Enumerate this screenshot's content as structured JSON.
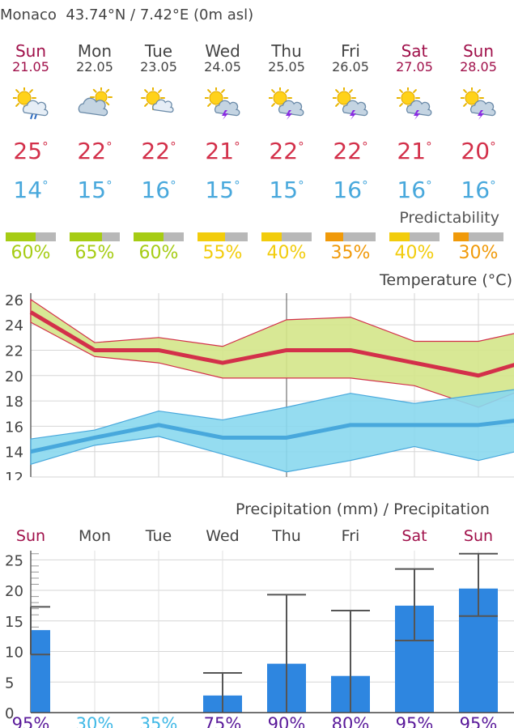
{
  "location": {
    "name": "Monaco",
    "coords": "43.74°N / 7.42°E (0m asl)"
  },
  "days": [
    {
      "name": "Sun",
      "date": "21.05",
      "weekend": true,
      "icon": "sun-cloud-rain-icon",
      "tmax": "25",
      "tmin": "14",
      "pred": "60%",
      "pred_frac": 0.6,
      "pred_color": "#a6cc14"
    },
    {
      "name": "Mon",
      "date": "22.05",
      "weekend": false,
      "icon": "cloud-sun-icon",
      "tmax": "22",
      "tmin": "15",
      "pred": "65%",
      "pred_frac": 0.65,
      "pred_color": "#a6cc14"
    },
    {
      "name": "Tue",
      "date": "23.05",
      "weekend": false,
      "icon": "sun-cloud-icon",
      "tmax": "22",
      "tmin": "16",
      "pred": "60%",
      "pred_frac": 0.6,
      "pred_color": "#a6cc14"
    },
    {
      "name": "Wed",
      "date": "24.05",
      "weekend": false,
      "icon": "sun-thunderstorm-icon",
      "tmax": "21",
      "tmin": "15",
      "pred": "55%",
      "pred_frac": 0.55,
      "pred_color": "#f2cc0c"
    },
    {
      "name": "Thu",
      "date": "25.05",
      "weekend": false,
      "icon": "sun-thunderstorm-icon",
      "tmax": "22",
      "tmin": "15",
      "pred": "40%",
      "pred_frac": 0.4,
      "pred_color": "#f2cc0c"
    },
    {
      "name": "Fri",
      "date": "26.05",
      "weekend": false,
      "icon": "sun-thunderstorm-icon",
      "tmax": "22",
      "tmin": "16",
      "pred": "35%",
      "pred_frac": 0.35,
      "pred_color": "#f09a0a"
    },
    {
      "name": "Sat",
      "date": "27.05",
      "weekend": true,
      "icon": "sun-thunderstorm-icon",
      "tmax": "21",
      "tmin": "16",
      "pred": "40%",
      "pred_frac": 0.4,
      "pred_color": "#f2cc0c"
    },
    {
      "name": "Sun",
      "date": "28.05",
      "weekend": true,
      "icon": "sun-thunderstorm-icon",
      "tmax": "20",
      "tmin": "16",
      "pred": "30%",
      "pred_frac": 0.3,
      "pred_color": "#f09a0a"
    }
  ],
  "degree_symbol": "°",
  "predictability_title": "Predictability",
  "temperature_title": "Temperature (°C)",
  "precipitation_title": "Precipitation (mm) / Precipitation",
  "colors": {
    "weekend": "#a0104a",
    "weekday": "#444444",
    "tmax": "#d3304a",
    "tmin": "#48a8dc",
    "precip_bar": "#2e86e0",
    "prob_high": "#5a1a9a",
    "prob_low": "#3fb8e6"
  },
  "chart_data": [
    {
      "type": "line",
      "title": "Temperature (°C)",
      "ylim": [
        12,
        26.5
      ],
      "yticks": [
        12,
        14,
        16,
        18,
        20,
        22,
        24,
        26
      ],
      "x": [
        0,
        1,
        2,
        3,
        4,
        5,
        6,
        7,
        8
      ],
      "series": [
        {
          "role": "max",
          "values": [
            25,
            22,
            22,
            21,
            22,
            22,
            21,
            20,
            21.5
          ]
        },
        {
          "role": "max-upper",
          "values": [
            26,
            22.6,
            23,
            22.3,
            24.4,
            24.6,
            22.7,
            22.7,
            23.8
          ]
        },
        {
          "role": "max-lower",
          "values": [
            24.2,
            21.5,
            21,
            19.8,
            19.8,
            19.8,
            19.2,
            17.5,
            19.5
          ]
        },
        {
          "role": "min",
          "values": [
            14,
            15.1,
            16.1,
            15.1,
            15.1,
            16.1,
            16.1,
            16.1,
            16.7
          ]
        },
        {
          "role": "min-upper",
          "values": [
            15,
            15.7,
            17.2,
            16.5,
            17.5,
            18.6,
            17.8,
            18.5,
            19.2
          ]
        },
        {
          "role": "min-lower",
          "values": [
            13,
            14.5,
            15.2,
            13.8,
            12.4,
            13.3,
            14.4,
            13.3,
            14.5
          ]
        }
      ],
      "grid": true
    },
    {
      "type": "bar",
      "title": "Precipitation (mm) / Precipitation",
      "categories": [
        "Sun",
        "Mon",
        "Tue",
        "Wed",
        "Thu",
        "Fri",
        "Sat",
        "Sun"
      ],
      "values": [
        13.5,
        0,
        0,
        2.8,
        8,
        6,
        17.5,
        20.3
      ],
      "error_low": [
        9.5,
        null,
        null,
        0,
        0,
        0,
        11.8,
        15.8
      ],
      "error_high": [
        17.3,
        null,
        null,
        6.5,
        19.3,
        16.7,
        23.5,
        26
      ],
      "probability": [
        "95%",
        "30%",
        "35%",
        "75%",
        "90%",
        "80%",
        "95%",
        "95%"
      ],
      "ylim": [
        0,
        26.5
      ],
      "yticks": [
        0,
        5,
        10,
        15,
        20,
        25
      ]
    }
  ]
}
